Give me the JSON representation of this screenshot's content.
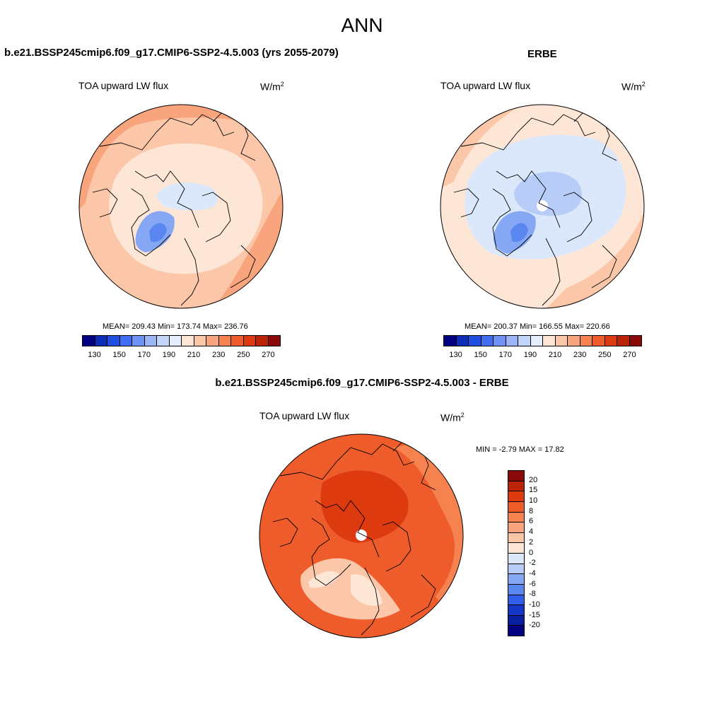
{
  "page_title": "ANN",
  "panels": {
    "model": {
      "header": "b.e21.BSSP245cmip6.f09_g17.CMIP6-SSP2-4.5.003 (yrs 2055-2079)",
      "variable": "TOA upward LW flux",
      "units_base": "W/m",
      "units_exp": "2",
      "stats": "MEAN= 209.43  Min= 173.74  Max= 236.76"
    },
    "obs": {
      "header": "ERBE",
      "variable": "TOA upward LW flux",
      "units_base": "W/m",
      "units_exp": "2",
      "stats": "MEAN= 200.37  Min= 166.55  Max= 220.66"
    },
    "diff": {
      "header": "b.e21.BSSP245cmip6.f09_g17.CMIP6-SSP2-4.5.003 - ERBE",
      "variable": "TOA upward LW flux",
      "units_base": "W/m",
      "units_exp": "2",
      "stats": "MIN =  -2.79 MAX =  17.82"
    }
  },
  "colorbar_abs": {
    "colors": [
      "#000080",
      "#0d2fb8",
      "#1f4fe0",
      "#3f6ef2",
      "#6f93f5",
      "#9ab6f7",
      "#c2d5fa",
      "#e4eefc",
      "#fde6d6",
      "#fbc7a8",
      "#f8a47c",
      "#f5824f",
      "#ef5c2c",
      "#dd3a10",
      "#bb2406",
      "#8a0a0a"
    ],
    "labels": [
      "130",
      "150",
      "170",
      "190",
      "210",
      "230",
      "250",
      "270"
    ]
  },
  "colorbar_diff": {
    "colors": [
      "#8a0a0a",
      "#bb2406",
      "#dd3a10",
      "#ef5c2c",
      "#f5824f",
      "#f8a47c",
      "#fbc7a8",
      "#fde6d6",
      "#dbe8fb",
      "#b7cdf8",
      "#86a8f4",
      "#5a86f0",
      "#2f5fe8",
      "#1536c7",
      "#0a1ea0",
      "#000080"
    ],
    "labels": [
      "20",
      "15",
      "10",
      "8",
      "6",
      "4",
      "2",
      "0",
      "-2",
      "-4",
      "-6",
      "-8",
      "-10",
      "-15",
      "-20"
    ]
  },
  "map_fills": {
    "model": {
      "base": "#fbc7a8",
      "outer": "#f8a47c",
      "inner": "#fde6d6",
      "arctic": "#dbe8fb",
      "greenland": "#86a8f4",
      "greenland_core": "#5a86f0"
    },
    "obs": {
      "base": "#fde6d6",
      "outer": "#fbc7a8",
      "inner": "#dbe8fb",
      "arctic": "#b7cdf8",
      "greenland": "#86a8f4",
      "greenland_core": "#5a86f0"
    },
    "diff": {
      "base": "#ef5c2c",
      "outer": "#f5824f",
      "inner": "#dd3a10",
      "arctic": "#dd3a10",
      "greenland": "#fbc7a8",
      "greenland_core": "#fde6d6"
    }
  }
}
